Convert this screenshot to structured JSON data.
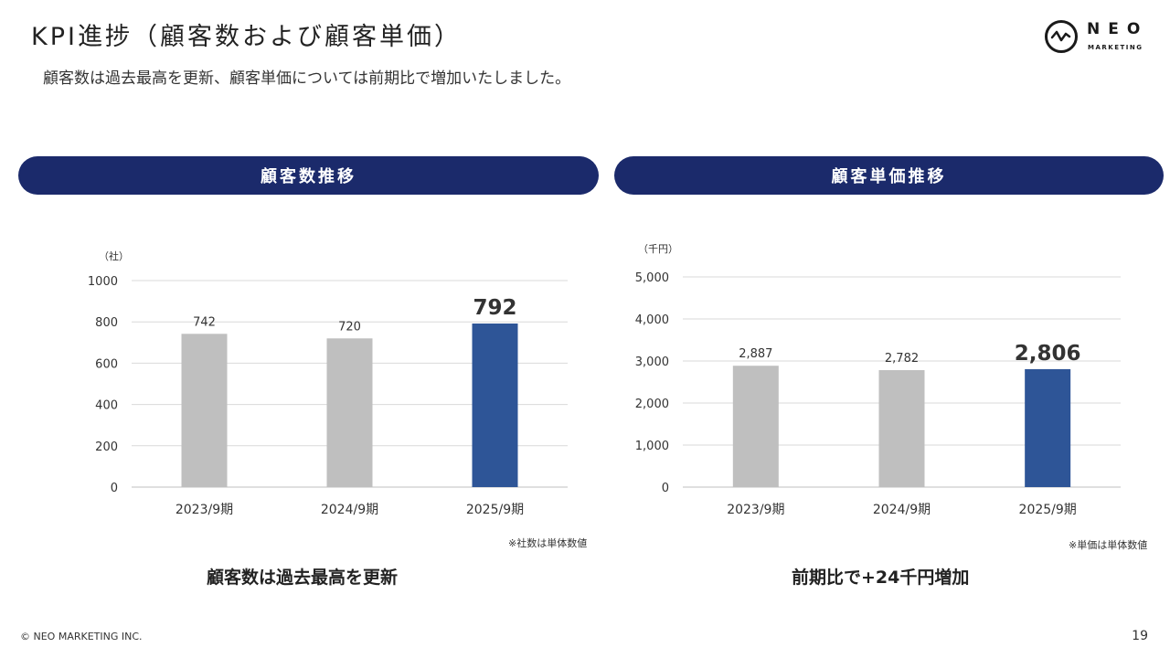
{
  "header": {
    "title": "KPI進捗（顧客数および顧客単価）",
    "subtitle": "顧客数は過去最高を更新、顧客単価については前期比で増加いたしました。"
  },
  "logo": {
    "word": "NEO",
    "sub": "MARKETING",
    "icon": "neo-wave-logo-icon"
  },
  "panels": [
    {
      "heading": "顧客数推移",
      "note": "※社数は単体数値",
      "caption": "顧客数は過去最高を更新"
    },
    {
      "heading": "顧客単価推移",
      "note": "※単価は単体数値",
      "caption": "前期比で+24千円増加"
    }
  ],
  "chart_data": [
    {
      "type": "bar",
      "unit_label": "（社）",
      "categories": [
        "2023/9期",
        "2024/9期",
        "2025/9期"
      ],
      "values": [
        742,
        720,
        792
      ],
      "value_labels": [
        "742",
        "720",
        "792"
      ],
      "ylim": [
        0,
        1000
      ],
      "yticks": [
        0,
        200,
        400,
        600,
        800,
        1000
      ],
      "ytick_labels": [
        "0",
        "200",
        "400",
        "600",
        "800",
        "1000"
      ],
      "grid": true,
      "colors": [
        "#bfbfbf",
        "#bfbfbf",
        "#2e5597"
      ],
      "highlight_index": 2
    },
    {
      "type": "bar",
      "unit_label": "（千円）",
      "categories": [
        "2023/9期",
        "2024/9期",
        "2025/9期"
      ],
      "values": [
        2887,
        2782,
        2806
      ],
      "value_labels": [
        "2,887",
        "2,782",
        "2,806"
      ],
      "ylim": [
        0,
        5000
      ],
      "yticks": [
        0,
        1000,
        2000,
        3000,
        4000,
        5000
      ],
      "ytick_labels": [
        "0",
        "1,000",
        "2,000",
        "3,000",
        "4,000",
        "5,000"
      ],
      "grid": true,
      "colors": [
        "#bfbfbf",
        "#bfbfbf",
        "#2e5597"
      ],
      "highlight_index": 2
    }
  ],
  "footer": {
    "copyright": "© NEO MARKETING INC.",
    "page_number": "19"
  }
}
